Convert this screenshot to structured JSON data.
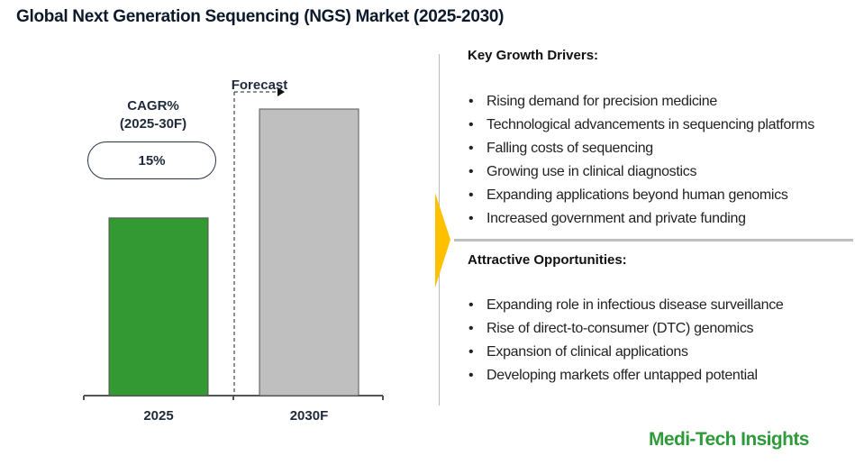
{
  "title": "Global Next Generation Sequencing (NGS) Market (2025-2030)",
  "chart_data": {
    "type": "bar",
    "categories": [
      "2025",
      "2030F"
    ],
    "values": [
      62,
      100
    ],
    "value_note_hidden": true,
    "colors": [
      "#339933",
      "#bfbfbf"
    ],
    "forecast_label": "Forecast",
    "cagr_label_line1": "CAGR%",
    "cagr_label_line2": "(2025-30F)",
    "cagr_value": "15%",
    "grid": false
  },
  "drivers": {
    "heading": "Key Growth Drivers:",
    "items": [
      "Rising demand for precision medicine",
      "Technological advancements in sequencing platforms",
      "Falling costs of sequencing",
      "Growing use in clinical diagnostics",
      "Expanding applications beyond human genomics",
      "Increased government and private funding"
    ]
  },
  "opportunities": {
    "heading": "Attractive Opportunities:",
    "items": [
      "Expanding role in infectious disease surveillance",
      "Rise of direct-to-consumer (DTC) genomics",
      "Expansion of clinical applications",
      "Developing markets offer untapped potential"
    ]
  },
  "bullet": "•",
  "logo": "Medi-Tech Insights",
  "accent_color": "#ffc000"
}
